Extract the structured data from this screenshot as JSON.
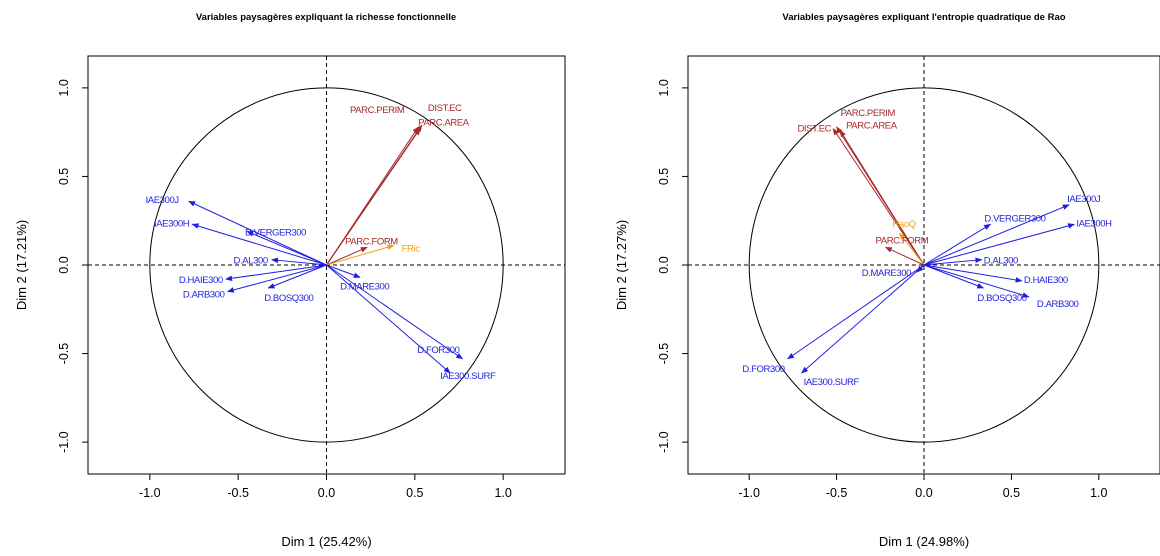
{
  "chart_data": [
    {
      "type": "scatter",
      "title": "Variables paysagères expliquant la richesse fonctionnelle",
      "xlabel": "Dim 1 (25.42%)",
      "ylabel": "Dim 2 (17.21%)",
      "xlim": [
        -1.35,
        1.35
      ],
      "ylim": [
        -1.18,
        1.18
      ],
      "xticks": [
        "-1.0",
        "-0.5",
        "0.0",
        "0.5",
        "1.0"
      ],
      "yticks": [
        "-1.0",
        "-0.5",
        "0.0",
        "0.5",
        "1.0"
      ],
      "grid": false,
      "colors": {
        "explanatory": "#1f1fe0",
        "supplementary": "#a52a2a",
        "response": "#f0a020"
      },
      "arrows": [
        {
          "label": "PARC.PERIM",
          "x": 0.52,
          "y": 0.78,
          "color": "supplementary"
        },
        {
          "label": "DIST.EC",
          "x": 0.54,
          "y": 0.79,
          "color": "supplementary"
        },
        {
          "label": "PARC.AREA",
          "x": 0.53,
          "y": 0.77,
          "color": "supplementary"
        },
        {
          "label": "IAE300J",
          "x": -0.78,
          "y": 0.36,
          "color": "explanatory"
        },
        {
          "label": "IAE300H",
          "x": -0.76,
          "y": 0.23,
          "color": "explanatory"
        },
        {
          "label": "D.VERGER300",
          "x": -0.45,
          "y": 0.19,
          "color": "explanatory"
        },
        {
          "label": "PARC.FORM",
          "x": 0.23,
          "y": 0.1,
          "color": "supplementary"
        },
        {
          "label": "FRic",
          "x": 0.38,
          "y": 0.11,
          "color": "response"
        },
        {
          "label": "D.AL300",
          "x": -0.31,
          "y": 0.03,
          "color": "explanatory"
        },
        {
          "label": "D.MARE300",
          "x": 0.19,
          "y": -0.07,
          "color": "explanatory"
        },
        {
          "label": "D.HAIE300",
          "x": -0.57,
          "y": -0.08,
          "color": "explanatory"
        },
        {
          "label": "D.ARB300",
          "x": -0.56,
          "y": -0.15,
          "color": "explanatory"
        },
        {
          "label": "D.BOSQ300",
          "x": -0.33,
          "y": -0.13,
          "color": "explanatory"
        },
        {
          "label": "D.FOR300",
          "x": 0.77,
          "y": -0.53,
          "color": "explanatory"
        },
        {
          "label": "IAE300.SURF",
          "x": 0.7,
          "y": -0.61,
          "color": "explanatory"
        }
      ]
    },
    {
      "type": "scatter",
      "title": "Variables paysagères expliquant l'entropie quadratique de Rao",
      "xlabel": "Dim 1 (24.98%)",
      "ylabel": "Dim 2 (17.27%)",
      "xlim": [
        -1.35,
        1.35
      ],
      "ylim": [
        -1.18,
        1.18
      ],
      "xticks": [
        "-1.0",
        "-0.5",
        "0.0",
        "0.5",
        "1.0"
      ],
      "yticks": [
        "-1.0",
        "-0.5",
        "0.0",
        "0.5",
        "1.0"
      ],
      "grid": false,
      "colors": {
        "explanatory": "#1f1fe0",
        "supplementary": "#a52a2a",
        "response": "#f0a020"
      },
      "arrows": [
        {
          "label": "PARC.PERIM",
          "x": -0.5,
          "y": 0.78,
          "color": "supplementary"
        },
        {
          "label": "DIST.EC",
          "x": -0.52,
          "y": 0.77,
          "color": "supplementary"
        },
        {
          "label": "PARC.AREA",
          "x": -0.48,
          "y": 0.76,
          "color": "supplementary"
        },
        {
          "label": "RaoQ",
          "x": -0.14,
          "y": 0.18,
          "color": "response"
        },
        {
          "label": "PARC.FORM",
          "x": -0.22,
          "y": 0.1,
          "color": "supplementary"
        },
        {
          "label": "IAE300J",
          "x": 0.83,
          "y": 0.34,
          "color": "explanatory"
        },
        {
          "label": "D.VERGER300",
          "x": 0.38,
          "y": 0.23,
          "color": "explanatory"
        },
        {
          "label": "IAE300H",
          "x": 0.86,
          "y": 0.23,
          "color": "explanatory"
        },
        {
          "label": "D.AL300",
          "x": 0.33,
          "y": 0.03,
          "color": "explanatory"
        },
        {
          "label": "D.MARE300",
          "x": -0.04,
          "y": -0.04,
          "color": "explanatory"
        },
        {
          "label": "D.HAIE300",
          "x": 0.56,
          "y": -0.09,
          "color": "explanatory"
        },
        {
          "label": "D.ARB300",
          "x": 0.6,
          "y": -0.18,
          "color": "explanatory"
        },
        {
          "label": "D.BOSQ300",
          "x": 0.34,
          "y": -0.13,
          "color": "explanatory"
        },
        {
          "label": "D.FOR300",
          "x": -0.78,
          "y": -0.53,
          "color": "explanatory"
        },
        {
          "label": "IAE300.SURF",
          "x": -0.7,
          "y": -0.61,
          "color": "explanatory"
        }
      ]
    }
  ]
}
